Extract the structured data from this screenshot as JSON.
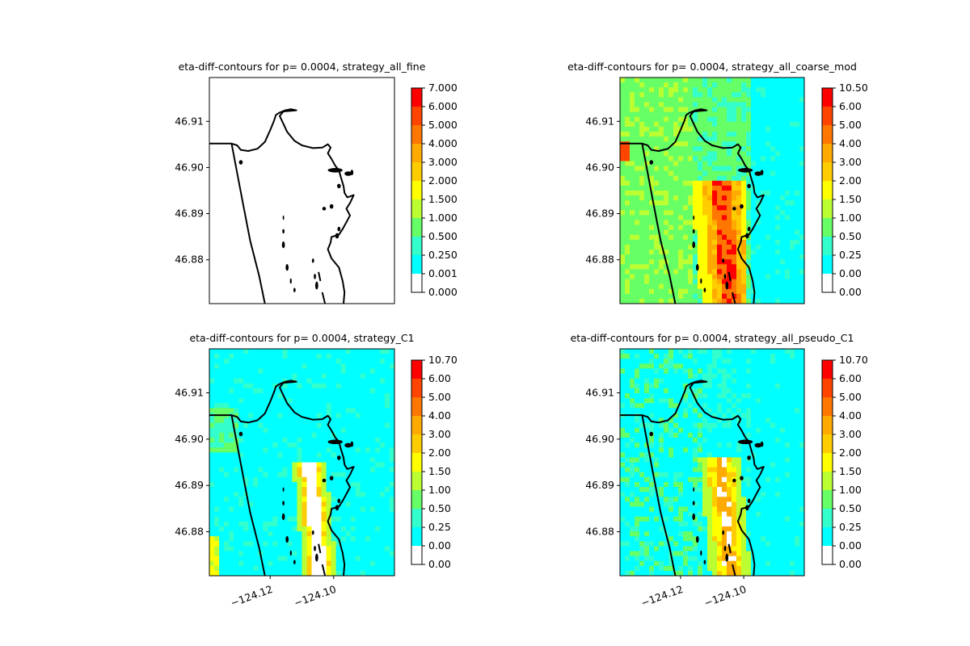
{
  "chart_data": [
    {
      "type": "heatmap",
      "title": "eta-diff-contours for p= 0.0004, strategy_all_fine",
      "xlabel": "",
      "ylabel": "",
      "xlim": [
        -124.1343,
        -124.0847
      ],
      "ylim": [
        46.8705,
        46.9195
      ],
      "yticks": [
        "46.91",
        "46.90",
        "46.89",
        "46.88"
      ],
      "ytick_values": [
        46.91,
        46.9,
        46.89,
        46.88
      ],
      "xticks": [],
      "xtick_values": [],
      "colorbar_ticks": [
        "7.000",
        "6.000",
        "5.000",
        "4.000",
        "3.000",
        "2.000",
        "1.500",
        "1.000",
        "0.500",
        "0.250",
        "0.001",
        "0.000"
      ],
      "fill": "none"
    },
    {
      "type": "heatmap",
      "title": "eta-diff-contours for p= 0.0004, strategy_all_coarse_mod",
      "xlabel": "",
      "ylabel": "",
      "xlim": [
        -124.1343,
        -124.0847
      ],
      "ylim": [
        46.8705,
        46.9195
      ],
      "yticks": [
        "46.91",
        "46.90",
        "46.89",
        "46.88"
      ],
      "ytick_values": [
        46.91,
        46.9,
        46.89,
        46.88
      ],
      "xticks": [],
      "xtick_values": [],
      "colorbar_ticks": [
        "10.50",
        "6.00",
        "5.00",
        "4.00",
        "3.00",
        "2.00",
        "1.50",
        "1.00",
        "0.50",
        "0.25",
        "0.00",
        "0.00"
      ],
      "fill": "coarse"
    },
    {
      "type": "heatmap",
      "title": "eta-diff-contours for p= 0.0004, strategy_C1",
      "xlabel": "",
      "ylabel": "",
      "xlim": [
        -124.1343,
        -124.0847
      ],
      "ylim": [
        46.8705,
        46.9195
      ],
      "yticks": [
        "46.91",
        "46.90",
        "46.89",
        "46.88"
      ],
      "ytick_values": [
        46.91,
        46.9,
        46.89,
        46.88
      ],
      "xticks": [
        "−124.12",
        "−124.10"
      ],
      "xtick_values": [
        -124.118,
        -124.101
      ],
      "colorbar_ticks": [
        "10.70",
        "6.00",
        "5.00",
        "4.00",
        "3.00",
        "2.00",
        "1.50",
        "1.00",
        "0.50",
        "0.25",
        "0.00",
        "0.00"
      ],
      "fill": "c1"
    },
    {
      "type": "heatmap",
      "title": "eta-diff-contours for p= 0.0004, strategy_all_pseudo_C1",
      "xlabel": "",
      "ylabel": "",
      "xlim": [
        -124.1343,
        -124.0847
      ],
      "ylim": [
        46.8705,
        46.9195
      ],
      "yticks": [
        "46.91",
        "46.90",
        "46.89",
        "46.88"
      ],
      "ytick_values": [
        46.91,
        46.9,
        46.89,
        46.88
      ],
      "xticks": [
        "−124.12",
        "−124.10"
      ],
      "xtick_values": [
        -124.118,
        -124.101
      ],
      "colorbar_ticks": [
        "10.70",
        "6.00",
        "5.00",
        "4.00",
        "3.00",
        "2.00",
        "1.50",
        "1.00",
        "0.50",
        "0.25",
        "0.00",
        "0.00"
      ],
      "fill": "pseudo"
    }
  ],
  "colorbar_colors": [
    "#ffffff",
    "#00ffff",
    "#33ffcc",
    "#66ff66",
    "#bbff33",
    "#ffff00",
    "#ffcc00",
    "#ffaa00",
    "#ff7700",
    "#ff4400",
    "#ff0000"
  ],
  "coastline_color": "#000000"
}
